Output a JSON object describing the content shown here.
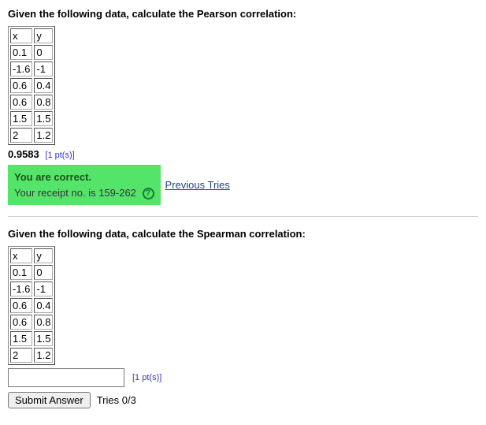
{
  "question1": {
    "prompt": "Given the following data, calculate the Pearson correlation:",
    "table": {
      "columns": [
        "x",
        "y"
      ],
      "rows": [
        [
          "0.1",
          "0"
        ],
        [
          "-1.6",
          "-1"
        ],
        [
          "0.6",
          "0.4"
        ],
        [
          "0.6",
          "0.8"
        ],
        [
          "1.5",
          "1.5"
        ],
        [
          "2",
          "1.2"
        ]
      ]
    },
    "answer_value": "0.9583",
    "points_label": "[1 pt(s)]",
    "feedback": {
      "title": "You are correct.",
      "receipt_prefix": "Your receipt no. is ",
      "receipt_no": "159-262",
      "help_glyph": "?"
    },
    "previous_tries_label": "Previous Tries"
  },
  "question2": {
    "prompt": "Given the following data, calculate the Spearman correlation:",
    "table": {
      "columns": [
        "x",
        "y"
      ],
      "rows": [
        [
          "0.1",
          "0"
        ],
        [
          "-1.6",
          "-1"
        ],
        [
          "0.6",
          "0.4"
        ],
        [
          "0.6",
          "0.8"
        ],
        [
          "1.5",
          "1.5"
        ],
        [
          "2",
          "1.2"
        ]
      ]
    },
    "answer_input_value": "",
    "points_label": "[1 pt(s)]",
    "submit_label": "Submit Answer",
    "tries_label": "Tries 0/3"
  }
}
